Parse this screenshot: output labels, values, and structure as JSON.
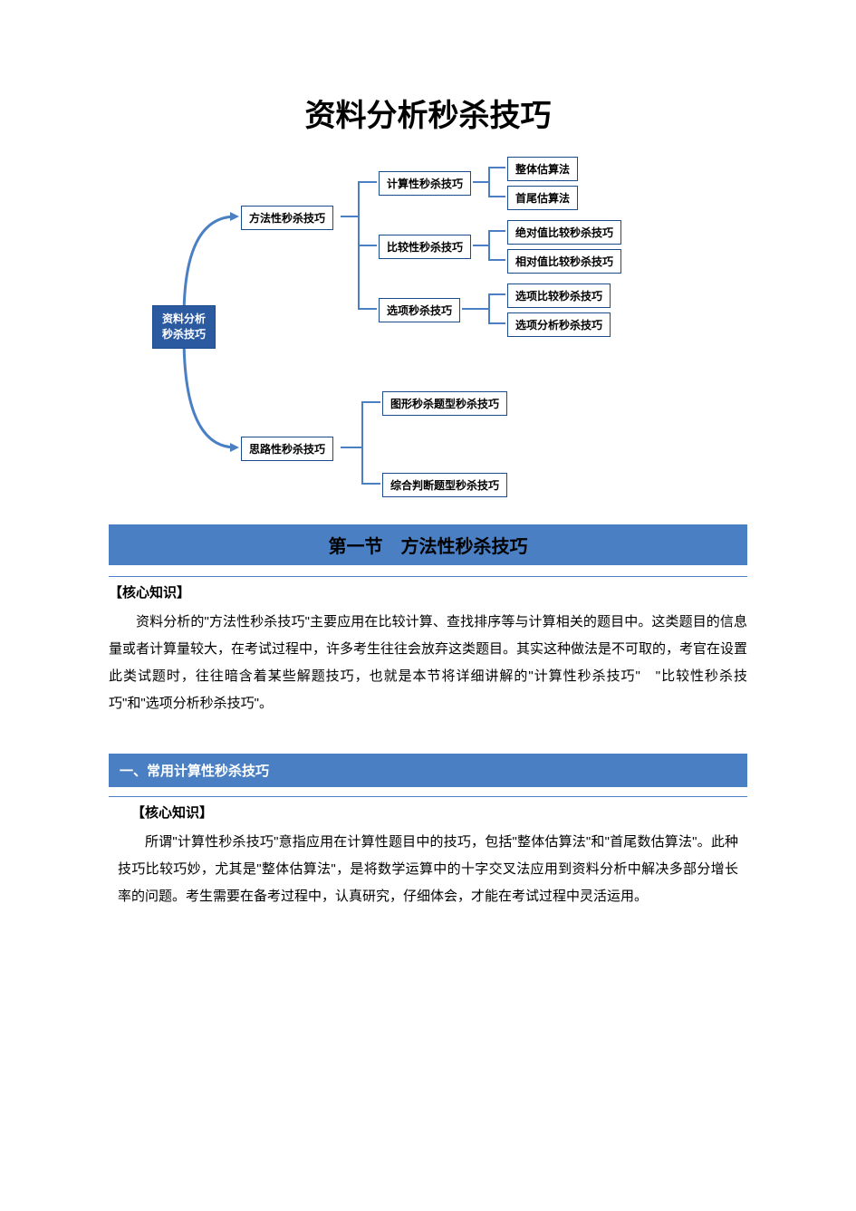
{
  "title": "资料分析秒杀技巧",
  "diagram": {
    "root": "资料分析\n秒杀技巧",
    "branch1": {
      "label": "方法性秒杀技巧",
      "children": [
        {
          "label": "计算性秒杀技巧",
          "leaves": [
            "整体估算法",
            "首尾估算法"
          ]
        },
        {
          "label": "比较性秒杀技巧",
          "leaves": [
            "绝对值比较秒杀技巧",
            "相对值比较秒杀技巧"
          ]
        },
        {
          "label": "选项秒杀技巧",
          "leaves": [
            "选项比较秒杀技巧",
            "选项分析秒杀技巧"
          ]
        }
      ]
    },
    "branch2": {
      "label": "思路性秒杀技巧",
      "children": [
        {
          "label": "图形秒杀题型秒杀技巧"
        },
        {
          "label": "综合判断题型秒杀技巧"
        }
      ]
    },
    "colors": {
      "root_bg": "#2c5aa0",
      "root_text": "#ffffff",
      "node_border": "#1a4b8c",
      "node_bg": "#ffffff",
      "connector": "#4a7fc4"
    }
  },
  "section1": {
    "header": "第一节　方法性秒杀技巧",
    "label": "【核心知识】",
    "body": "资料分析的\"方法性秒杀技巧\"主要应用在比较计算、查找排序等与计算相关的题目中。这类题目的信息量或者计算量较大，在考试过程中，许多考生往往会放弃这类题目。其实这种做法是不可取的，考官在设置此类试题时，往往暗含着某些解题技巧，也就是本节将详细讲解的\"计算性秒杀技巧\"　\"比较性秒杀技巧\"和\"选项分析秒杀技巧\"。"
  },
  "section2": {
    "header": "一、常用计算性秒杀技巧",
    "label": "【核心知识】",
    "body": "所谓\"计算性秒杀技巧\"意指应用在计算性题目中的技巧，包括\"整体估算法\"和\"首尾数估算法\"。此种技巧比较巧妙，尤其是\"整体估算法\"，是将数学运算中的十字交叉法应用到资料分析中解决多部分增长率的问题。考生需要在备考过程中，认真研究，仔细体会，才能在考试过程中灵活运用。"
  }
}
